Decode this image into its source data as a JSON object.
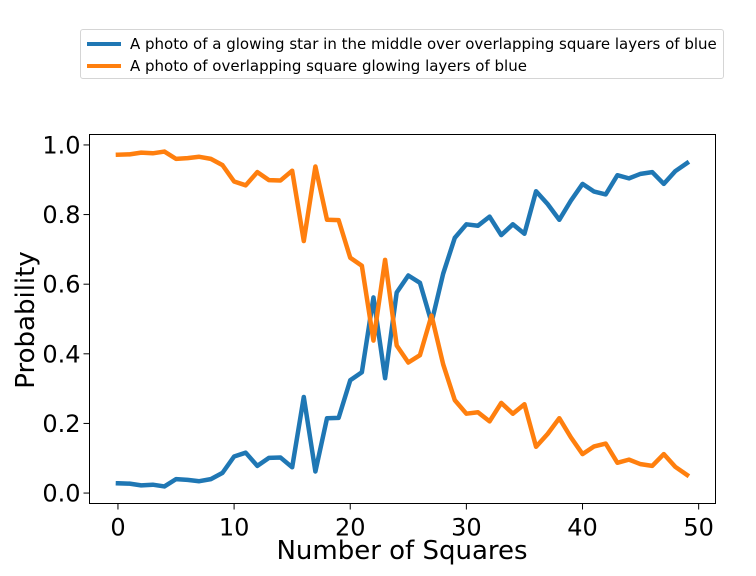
{
  "chart_data": {
    "type": "line",
    "title": "",
    "xlabel": "Number of Squares",
    "ylabel": "Probability",
    "xlim": [
      -2.45,
      51.45
    ],
    "ylim": [
      -0.03,
      1.03
    ],
    "xticks": [
      0,
      10,
      20,
      30,
      40,
      50
    ],
    "xtick_labels": [
      "0",
      "10",
      "20",
      "30",
      "40",
      "50"
    ],
    "yticks": [
      0.0,
      0.2,
      0.4,
      0.6,
      0.8,
      1.0
    ],
    "ytick_labels": [
      "0.0",
      "0.2",
      "0.4",
      "0.6",
      "0.8",
      "1.0"
    ],
    "grid": false,
    "legend_position": "above plot",
    "x": [
      0,
      1,
      2,
      3,
      4,
      5,
      6,
      7,
      8,
      9,
      10,
      11,
      12,
      13,
      14,
      15,
      16,
      17,
      18,
      19,
      20,
      21,
      22,
      23,
      24,
      25,
      26,
      27,
      28,
      29,
      30,
      31,
      32,
      33,
      34,
      35,
      36,
      37,
      38,
      39,
      40,
      41,
      42,
      43,
      44,
      45,
      46,
      47,
      48,
      49
    ],
    "series": [
      {
        "name": "A photo of a glowing star in the middle over overlapping square layers of blue",
        "color": "#1f77b4",
        "values": [
          0.028,
          0.027,
          0.022,
          0.024,
          0.019,
          0.04,
          0.038,
          0.034,
          0.04,
          0.058,
          0.105,
          0.116,
          0.078,
          0.101,
          0.102,
          0.074,
          0.276,
          0.062,
          0.215,
          0.216,
          0.324,
          0.347,
          0.562,
          0.33,
          0.576,
          0.625,
          0.604,
          0.49,
          0.63,
          0.733,
          0.772,
          0.768,
          0.794,
          0.741,
          0.772,
          0.745,
          0.867,
          0.83,
          0.785,
          0.84,
          0.888,
          0.866,
          0.858,
          0.913,
          0.904,
          0.917,
          0.922,
          0.888,
          0.925,
          0.948
        ]
      },
      {
        "name": "A photo of overlapping square glowing layers of blue",
        "color": "#ff7f0e",
        "values": [
          0.972,
          0.973,
          0.978,
          0.976,
          0.981,
          0.96,
          0.962,
          0.966,
          0.96,
          0.942,
          0.895,
          0.884,
          0.922,
          0.899,
          0.898,
          0.926,
          0.724,
          0.938,
          0.785,
          0.784,
          0.676,
          0.653,
          0.438,
          0.67,
          0.424,
          0.375,
          0.396,
          0.51,
          0.37,
          0.267,
          0.228,
          0.232,
          0.206,
          0.259,
          0.228,
          0.255,
          0.133,
          0.17,
          0.215,
          0.16,
          0.112,
          0.134,
          0.142,
          0.087,
          0.096,
          0.083,
          0.078,
          0.112,
          0.075,
          0.052
        ]
      }
    ]
  }
}
